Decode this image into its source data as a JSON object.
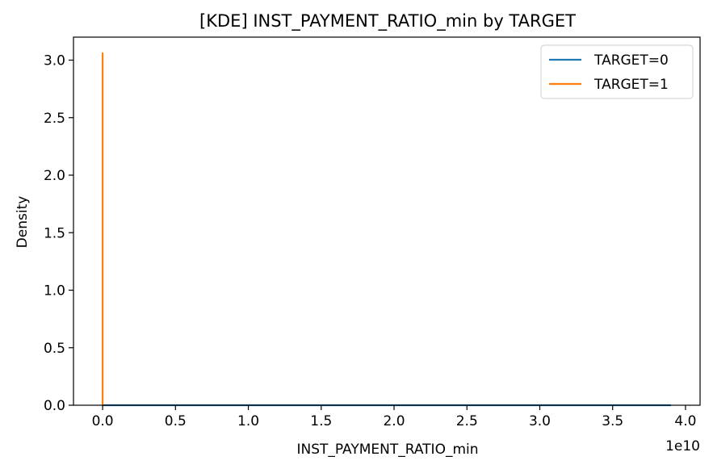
{
  "chart_data": {
    "type": "line",
    "title": "[KDE] INST_PAYMENT_RATIO_min by TARGET",
    "xlabel": "INST_PAYMENT_RATIO_min",
    "ylabel": "Density",
    "x_offset_label": "1e10",
    "xlim": [
      -0.2,
      4.1
    ],
    "ylim": [
      0,
      3.2
    ],
    "x_ticks": [
      0.0,
      0.5,
      1.0,
      1.5,
      2.0,
      2.5,
      3.0,
      3.5,
      4.0
    ],
    "x_tick_labels": [
      "0.0",
      "0.5",
      "1.0",
      "1.5",
      "2.0",
      "2.5",
      "3.0",
      "3.5",
      "4.0"
    ],
    "y_ticks": [
      0.0,
      0.5,
      1.0,
      1.5,
      2.0,
      2.5,
      3.0
    ],
    "y_tick_labels": [
      "0.0",
      "0.5",
      "1.0",
      "1.5",
      "2.0",
      "2.5",
      "3.0"
    ],
    "grid": false,
    "legend_position": "top-right",
    "series": [
      {
        "name": "TARGET=0",
        "color": "#1f77b4",
        "x": [
          0,
          3.9
        ],
        "y": [
          0,
          0
        ]
      },
      {
        "name": "TARGET=1",
        "color": "#ff7f0e",
        "x": [
          0,
          0,
          0,
          0
        ],
        "y": [
          0,
          3.06,
          3.06,
          0
        ]
      }
    ]
  }
}
